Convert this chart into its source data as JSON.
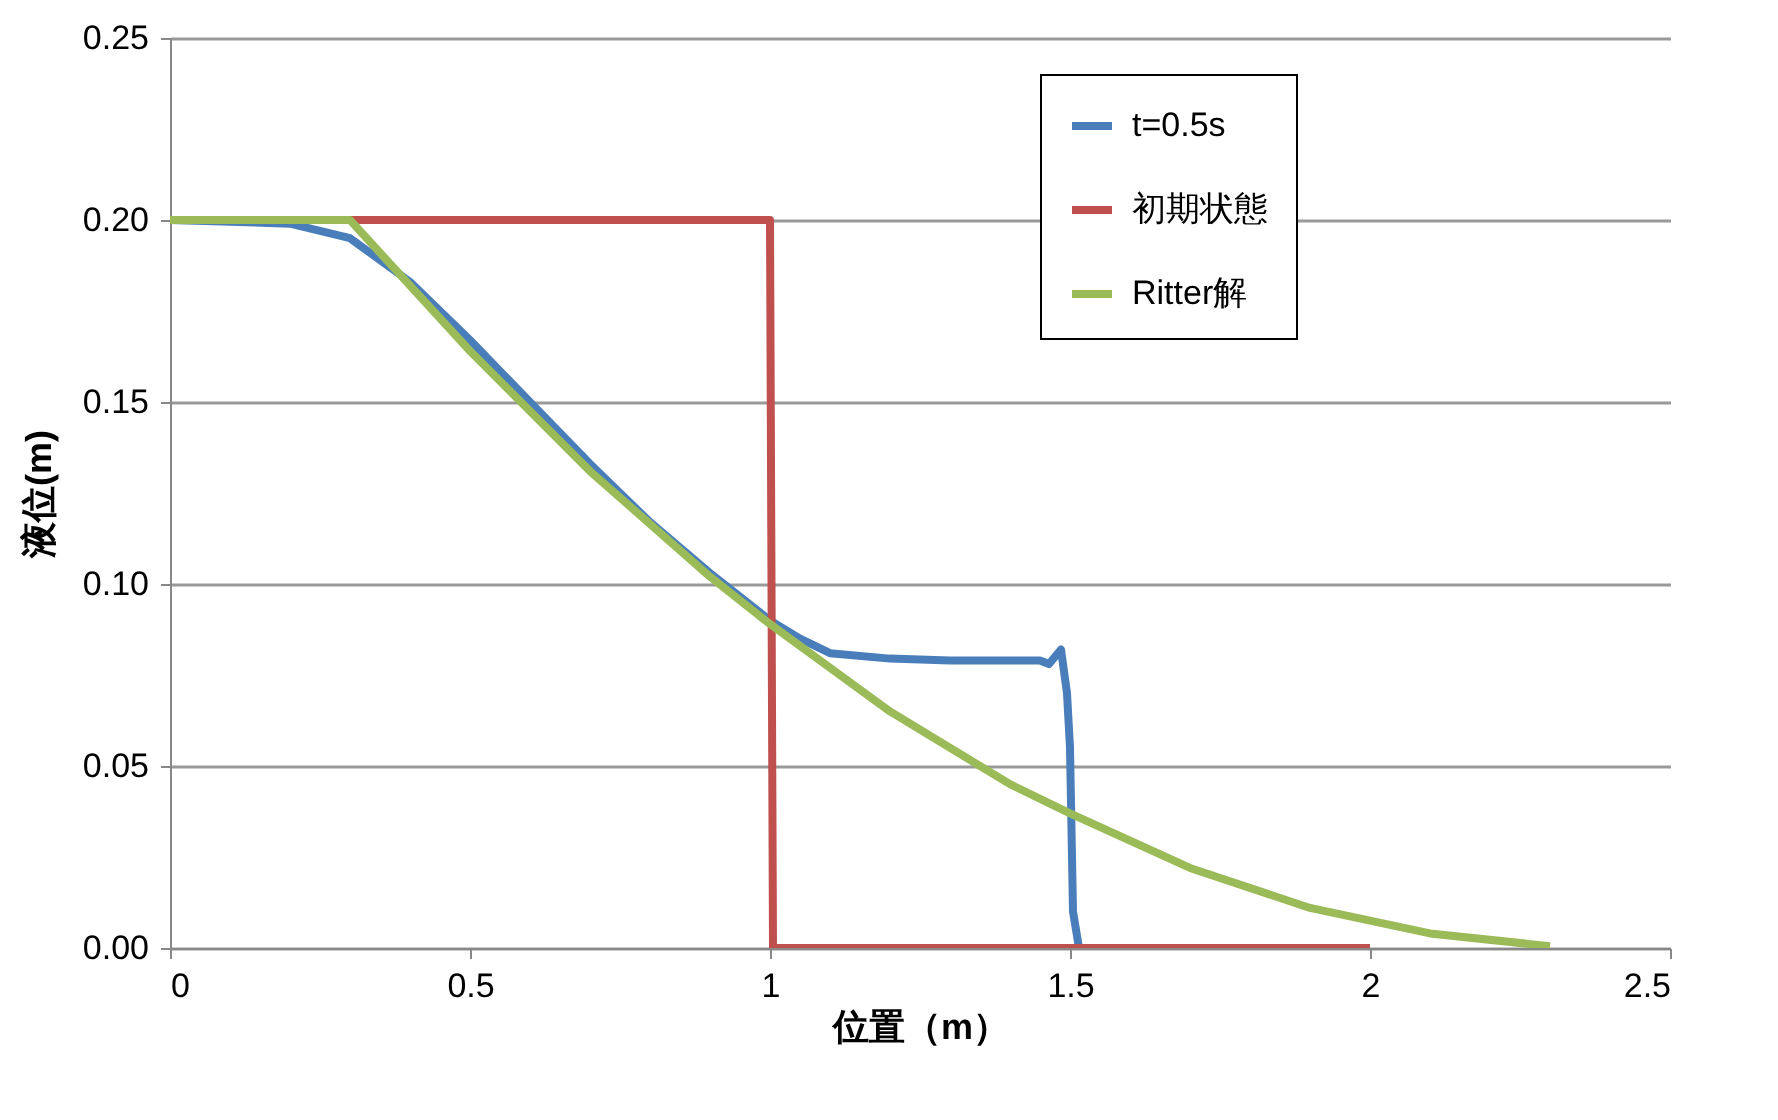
{
  "chart_data": {
    "type": "line",
    "xlabel": "位置（m）",
    "ylabel": "液位(m)",
    "xlim": [
      0,
      2.5
    ],
    "xticks": [
      0,
      0.5,
      1,
      1.5,
      2,
      2.5
    ],
    "ylim": [
      0,
      0.25
    ],
    "yticks": [
      {
        "value": 0,
        "label": "0.00"
      },
      {
        "value": 0.05,
        "label": "0.05"
      },
      {
        "value": 0.1,
        "label": "0.10"
      },
      {
        "value": 0.15,
        "label": "0.15"
      },
      {
        "value": 0.2,
        "label": "0.20"
      },
      {
        "value": 0.25,
        "label": "0.25"
      }
    ],
    "grid": "y",
    "legend": "top right",
    "marker": "none",
    "line_style": "solid",
    "series": [
      {
        "name": "t=0.5s",
        "color": "#4a7ebb",
        "x": [
          0,
          0.2,
          0.3,
          0.4,
          0.5,
          0.6,
          0.7,
          0.8,
          0.9,
          1.0,
          1.05,
          1.1,
          1.2,
          1.3,
          1.45,
          1.465,
          1.485,
          1.495,
          1.5,
          1.505,
          1.515
        ],
        "values": [
          0.2,
          0.199,
          0.195,
          0.183,
          0.167,
          0.15,
          0.133,
          0.117,
          0.103,
          0.09,
          0.085,
          0.081,
          0.0795,
          0.079,
          0.079,
          0.078,
          0.082,
          0.07,
          0.055,
          0.01,
          0
        ]
      },
      {
        "name": "初期状態",
        "color": "#c0504d",
        "x": [
          0,
          1,
          1.005,
          2
        ],
        "values": [
          0.2,
          0.2,
          0,
          0
        ]
      },
      {
        "name": "Ritter解",
        "color": "#9bbb59",
        "x": [
          0,
          0.3,
          0.5,
          0.7,
          0.9,
          1.0,
          1.2,
          1.4,
          1.5,
          1.7,
          1.9,
          2.1,
          2.3
        ],
        "values": [
          0.2,
          0.2,
          0.164,
          0.131,
          0.102,
          0.089,
          0.065,
          0.045,
          0.037,
          0.022,
          0.011,
          0.004,
          0.0005
        ]
      }
    ]
  }
}
